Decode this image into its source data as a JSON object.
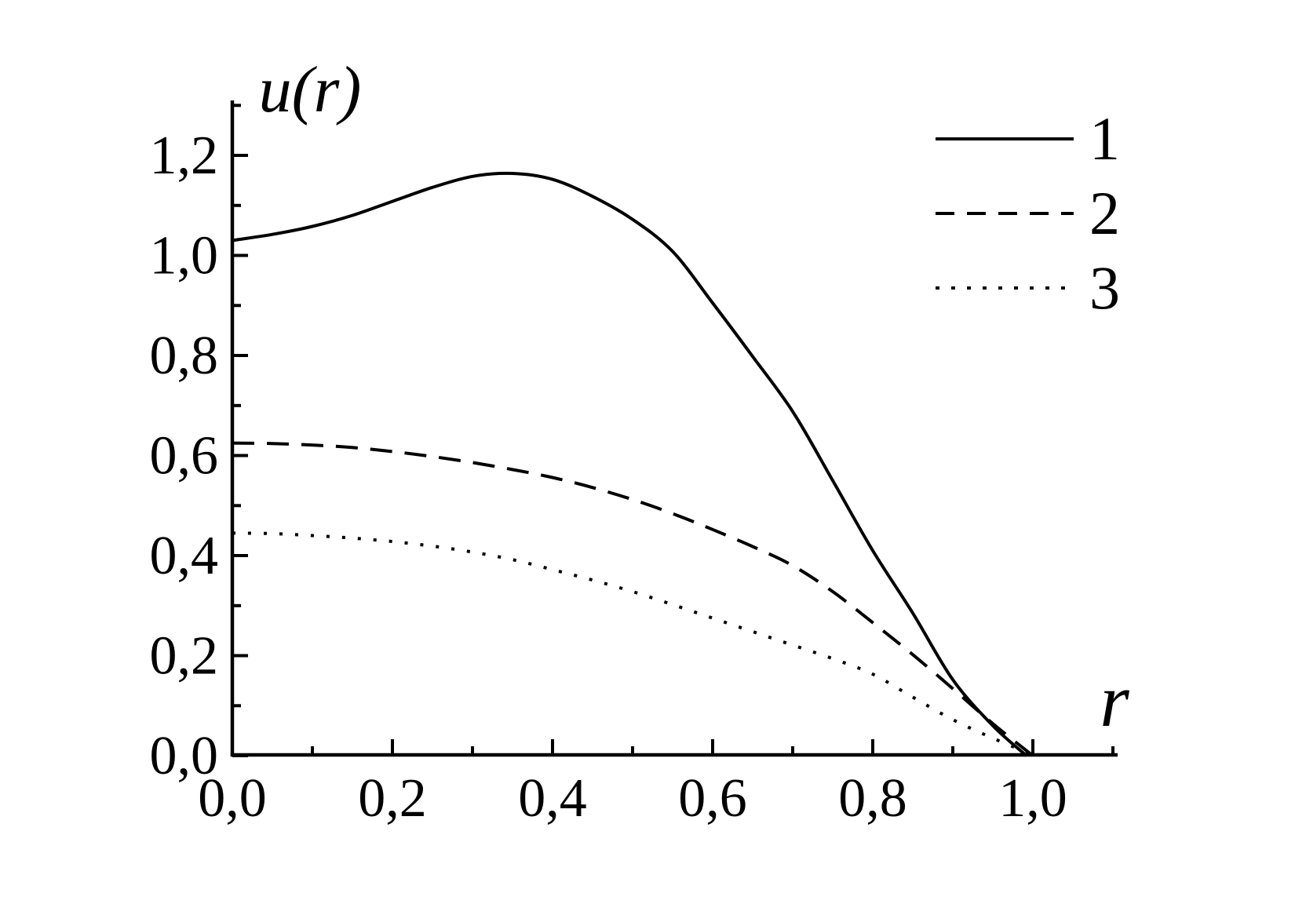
{
  "figure": {
    "background": "#ffffff",
    "ink": "#000000"
  },
  "legend": {
    "position": "top-right",
    "items": [
      {
        "label": "1",
        "style": "solid"
      },
      {
        "label": "2",
        "style": "dashed"
      },
      {
        "label": "3",
        "style": "dotted"
      }
    ]
  },
  "chart_data": {
    "type": "line",
    "title": "",
    "xlabel": "r",
    "ylabel": "u(r)",
    "xlim": [
      0,
      1.105
    ],
    "ylim": [
      0,
      1.31
    ],
    "grid": false,
    "decimal_separator": ",",
    "x_tick_values": [
      0,
      0.2,
      0.4,
      0.6,
      0.8,
      1.0
    ],
    "x_tick_labels": [
      "0,0",
      "0,2",
      "0,4",
      "0,6",
      "0,8",
      "1,0"
    ],
    "x_minor_ticks": [
      0.1,
      0.3,
      0.5,
      0.7,
      0.9,
      1.1
    ],
    "y_tick_values": [
      0,
      0.2,
      0.4,
      0.6,
      0.8,
      1.0,
      1.2
    ],
    "y_tick_labels": [
      "0,0",
      "0,2",
      "0,4",
      "0,6",
      "0,8",
      "1,0",
      "1,2"
    ],
    "y_minor_ticks": [
      0.1,
      0.3,
      0.5,
      0.7,
      0.9,
      1.1,
      1.3
    ],
    "series": [
      {
        "name": "1",
        "style": "solid",
        "points": [
          [
            0,
            1.03
          ],
          [
            0.05,
            1.042
          ],
          [
            0.1,
            1.058
          ],
          [
            0.15,
            1.08
          ],
          [
            0.2,
            1.108
          ],
          [
            0.25,
            1.136
          ],
          [
            0.3,
            1.158
          ],
          [
            0.35,
            1.164
          ],
          [
            0.4,
            1.152
          ],
          [
            0.45,
            1.118
          ],
          [
            0.5,
            1.072
          ],
          [
            0.55,
            1.008
          ],
          [
            0.6,
            0.905
          ],
          [
            0.65,
            0.798
          ],
          [
            0.7,
            0.688
          ],
          [
            0.75,
            0.55
          ],
          [
            0.8,
            0.41
          ],
          [
            0.85,
            0.285
          ],
          [
            0.9,
            0.152
          ],
          [
            0.95,
            0.06
          ],
          [
            0.992,
            0.0
          ]
        ]
      },
      {
        "name": "2",
        "style": "dashed",
        "points": [
          [
            0,
            0.625
          ],
          [
            0.05,
            0.624
          ],
          [
            0.1,
            0.621
          ],
          [
            0.15,
            0.616
          ],
          [
            0.2,
            0.608
          ],
          [
            0.25,
            0.598
          ],
          [
            0.3,
            0.586
          ],
          [
            0.35,
            0.572
          ],
          [
            0.4,
            0.556
          ],
          [
            0.45,
            0.536
          ],
          [
            0.5,
            0.512
          ],
          [
            0.55,
            0.484
          ],
          [
            0.6,
            0.452
          ],
          [
            0.65,
            0.418
          ],
          [
            0.7,
            0.38
          ],
          [
            0.75,
            0.328
          ],
          [
            0.8,
            0.266
          ],
          [
            0.85,
            0.202
          ],
          [
            0.9,
            0.134
          ],
          [
            0.95,
            0.064
          ],
          [
            1.0,
            0.0
          ]
        ]
      },
      {
        "name": "3",
        "style": "dotted",
        "points": [
          [
            0,
            0.445
          ],
          [
            0.05,
            0.444
          ],
          [
            0.1,
            0.44
          ],
          [
            0.15,
            0.435
          ],
          [
            0.2,
            0.428
          ],
          [
            0.25,
            0.419
          ],
          [
            0.3,
            0.407
          ],
          [
            0.35,
            0.392
          ],
          [
            0.4,
            0.372
          ],
          [
            0.45,
            0.351
          ],
          [
            0.5,
            0.328
          ],
          [
            0.55,
            0.302
          ],
          [
            0.6,
            0.275
          ],
          [
            0.65,
            0.248
          ],
          [
            0.7,
            0.221
          ],
          [
            0.75,
            0.194
          ],
          [
            0.8,
            0.163
          ],
          [
            0.85,
            0.117
          ],
          [
            0.9,
            0.072
          ],
          [
            0.95,
            0.035
          ],
          [
            1.003,
            0.0
          ]
        ]
      }
    ]
  }
}
